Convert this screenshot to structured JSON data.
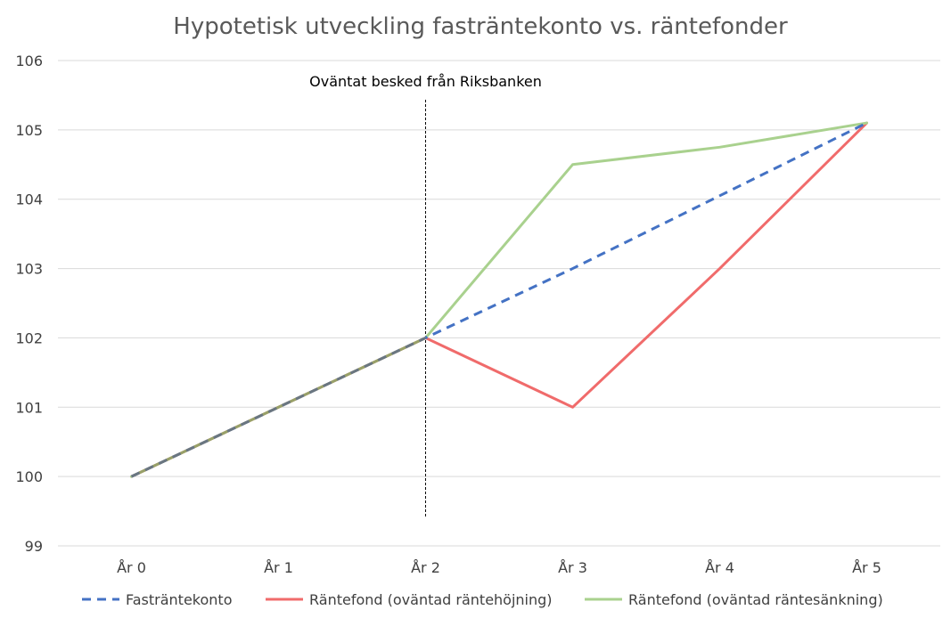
{
  "chart_data": {
    "type": "line",
    "title": "Hypotetisk utveckling fasträntekonto vs. räntefonder",
    "xlabel": "",
    "ylabel": "",
    "categories": [
      "År 0",
      "År 1",
      "År 2",
      "År 3",
      "År 4",
      "År 5"
    ],
    "ylim": [
      99,
      106
    ],
    "yticks": [
      "99",
      "100",
      "101",
      "102",
      "103",
      "104",
      "105",
      "106"
    ],
    "grid": "horizontal",
    "legend_position": "bottom",
    "annotation": {
      "text": "Oväntat besked från Riksbanken",
      "at_category": "År 2",
      "style": "dashed vertical line"
    },
    "series": [
      {
        "name": "Fasträntekonto",
        "values": [
          100,
          101,
          102,
          103,
          104.05,
          105.1
        ],
        "color": "#4472C4",
        "dash": true
      },
      {
        "name": "Räntefond (oväntad räntehöjning)",
        "values": [
          100,
          101,
          102,
          101,
          103,
          105.1
        ],
        "color": "#F06B6B",
        "dash": false
      },
      {
        "name": "Räntefond (oväntad räntesänkning)",
        "values": [
          100,
          101,
          102,
          104.5,
          104.75,
          105.1
        ],
        "color": "#A9D18E",
        "dash": false
      }
    ]
  }
}
